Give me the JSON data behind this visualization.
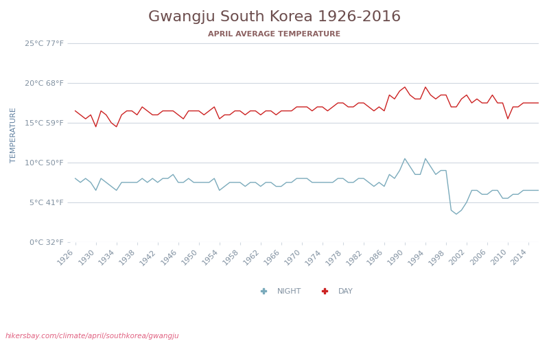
{
  "title": "Gwangju South Korea 1926-2016",
  "subtitle": "APRIL AVERAGE TEMPERATURE",
  "ylabel": "TEMPERATURE",
  "watermark": "hikersbay.com/climate/april/southkorea/gwangju",
  "title_color": "#6b4c4c",
  "subtitle_color": "#8b6060",
  "axis_label_color": "#6080a0",
  "tick_color": "#8090a0",
  "grid_color": "#d0d8e0",
  "line_day_color": "#cc2222",
  "line_night_color": "#7aaabb",
  "legend_night": "NIGHT",
  "legend_day": "DAY",
  "ylim": [
    0,
    27
  ],
  "yticks": [
    0,
    5,
    10,
    15,
    20,
    25
  ],
  "ytick_labels": [
    "0°C 32°F",
    "5°C 41°F",
    "10°C 50°F",
    "15°C 59°F",
    "20°C 68°F",
    "25°C 77°F"
  ],
  "xstart": 1926,
  "xend": 2016,
  "xtick_step": 4,
  "years": [
    1926,
    1927,
    1928,
    1929,
    1930,
    1931,
    1932,
    1933,
    1934,
    1935,
    1936,
    1937,
    1938,
    1939,
    1940,
    1941,
    1942,
    1943,
    1944,
    1945,
    1946,
    1947,
    1948,
    1949,
    1950,
    1951,
    1952,
    1953,
    1954,
    1955,
    1956,
    1957,
    1958,
    1959,
    1960,
    1961,
    1962,
    1963,
    1964,
    1965,
    1966,
    1967,
    1968,
    1969,
    1970,
    1971,
    1972,
    1973,
    1974,
    1975,
    1976,
    1977,
    1978,
    1979,
    1980,
    1981,
    1982,
    1983,
    1984,
    1985,
    1986,
    1987,
    1988,
    1989,
    1990,
    1991,
    1992,
    1993,
    1994,
    1995,
    1996,
    1997,
    1998,
    1999,
    2000,
    2001,
    2002,
    2003,
    2004,
    2005,
    2006,
    2007,
    2008,
    2009,
    2010,
    2011,
    2012,
    2013,
    2014,
    2015,
    2016
  ],
  "day_temps": [
    16.5,
    16.0,
    15.5,
    16.0,
    14.5,
    16.5,
    16.0,
    15.0,
    14.5,
    16.0,
    16.5,
    16.5,
    16.0,
    17.0,
    16.5,
    16.0,
    16.0,
    16.5,
    16.5,
    16.5,
    16.0,
    15.5,
    16.5,
    16.5,
    16.5,
    16.0,
    16.5,
    17.0,
    15.5,
    16.0,
    16.0,
    16.5,
    16.5,
    16.0,
    16.5,
    16.5,
    16.0,
    16.5,
    16.5,
    16.0,
    16.5,
    16.5,
    16.5,
    17.0,
    17.0,
    17.0,
    16.5,
    17.0,
    17.0,
    16.5,
    17.0,
    17.5,
    17.5,
    17.0,
    17.0,
    17.5,
    17.5,
    17.0,
    16.5,
    17.0,
    16.5,
    18.5,
    18.0,
    19.0,
    19.5,
    18.5,
    18.0,
    18.0,
    19.5,
    18.5,
    18.0,
    18.5,
    18.5,
    17.0,
    17.0,
    18.0,
    18.5,
    17.5,
    18.0,
    17.5,
    17.5,
    18.5,
    17.5,
    17.5,
    15.5,
    17.0,
    17.0,
    17.5,
    17.5,
    17.5,
    17.5
  ],
  "night_temps": [
    8.0,
    7.5,
    8.0,
    7.5,
    6.5,
    8.0,
    7.5,
    7.0,
    6.5,
    7.5,
    7.5,
    7.5,
    7.5,
    8.0,
    7.5,
    8.0,
    7.5,
    8.0,
    8.0,
    8.5,
    7.5,
    7.5,
    8.0,
    7.5,
    7.5,
    7.5,
    7.5,
    8.0,
    6.5,
    7.0,
    7.5,
    7.5,
    7.5,
    7.0,
    7.5,
    7.5,
    7.0,
    7.5,
    7.5,
    7.0,
    7.0,
    7.5,
    7.5,
    8.0,
    8.0,
    8.0,
    7.5,
    7.5,
    7.5,
    7.5,
    7.5,
    8.0,
    8.0,
    7.5,
    7.5,
    8.0,
    8.0,
    7.5,
    7.0,
    7.5,
    7.0,
    8.5,
    8.0,
    9.0,
    10.5,
    9.5,
    8.5,
    8.5,
    10.5,
    9.5,
    8.5,
    9.0,
    9.0,
    4.0,
    3.5,
    4.0,
    5.0,
    6.5,
    6.5,
    6.0,
    6.0,
    6.5,
    6.5,
    5.5,
    5.5,
    6.0,
    6.0,
    6.5,
    6.5,
    6.5,
    6.5
  ]
}
